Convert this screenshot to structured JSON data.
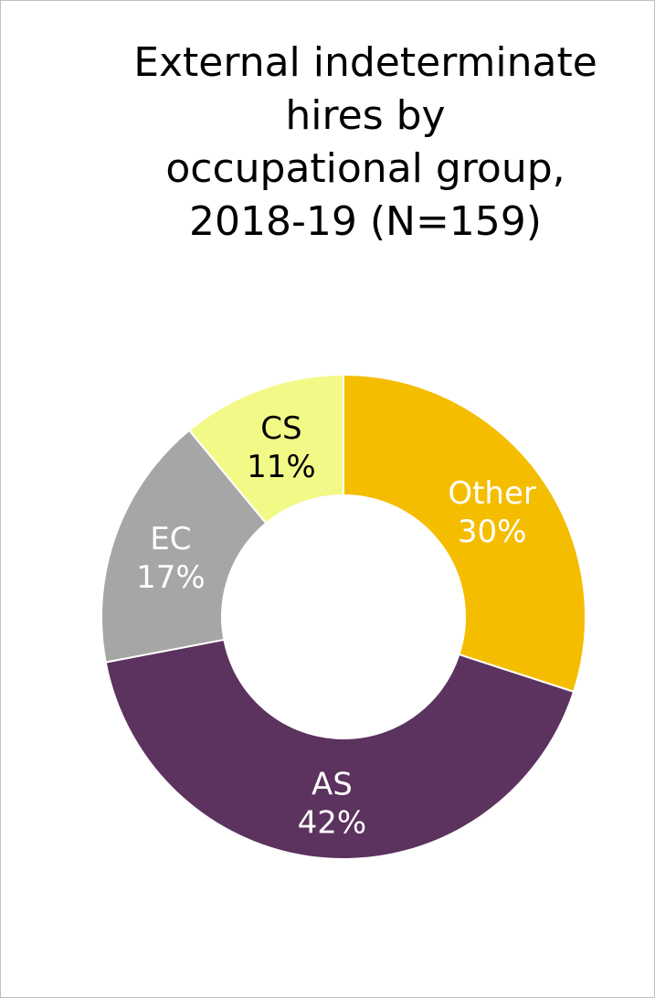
{
  "chart_data": {
    "type": "pie",
    "variant": "donut",
    "title_lines": [
      "External indeterminate",
      "hires by",
      "occupational group,",
      "2018-19 (N=159)"
    ],
    "categories": [
      "Other",
      "AS",
      "EC",
      "CS"
    ],
    "values": [
      30,
      42,
      17,
      11
    ],
    "value_labels": [
      "30%",
      "42%",
      "17%",
      "11%"
    ],
    "colors": [
      "#f5bd00",
      "#5c325e",
      "#a6a6a6",
      "#f2f987"
    ],
    "label_colors": [
      "#ffffff",
      "#ffffff",
      "#ffffff",
      "#000000"
    ],
    "start": "top, clockwise",
    "legend": "none"
  }
}
